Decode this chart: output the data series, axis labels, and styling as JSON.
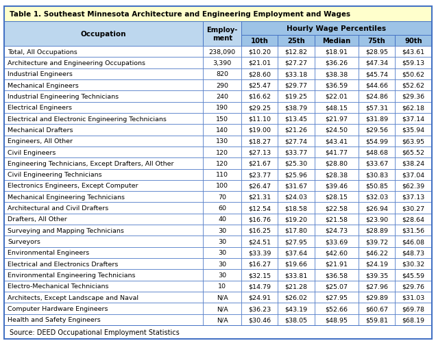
{
  "title": "Table 1. Southeast Minnesota Architecture and Engineering Employment and Wages",
  "source": "Source: DEED Occupational Employment Statistics",
  "rows": [
    [
      "Total, All Occupations",
      "238,090",
      "$10.20",
      "$12.82",
      "$18.91",
      "$28.95",
      "$43.61"
    ],
    [
      "Architecture and Engineering Occupations",
      "3,390",
      "$21.01",
      "$27.27",
      "$36.26",
      "$47.34",
      "$59.13"
    ],
    [
      "Industrial Engineers",
      "820",
      "$28.60",
      "$33.18",
      "$38.38",
      "$45.74",
      "$50.62"
    ],
    [
      "Mechanical Engineers",
      "290",
      "$25.47",
      "$29.77",
      "$36.59",
      "$44.66",
      "$52.62"
    ],
    [
      "Industrial Engineering Technicians",
      "240",
      "$16.62",
      "$19.25",
      "$22.01",
      "$24.86",
      "$29.36"
    ],
    [
      "Electrical Engineers",
      "190",
      "$29.25",
      "$38.79",
      "$48.15",
      "$57.31",
      "$62.18"
    ],
    [
      "Electrical and Electronic Engineering Technicians",
      "150",
      "$11.10",
      "$13.45",
      "$21.97",
      "$31.89",
      "$37.14"
    ],
    [
      "Mechanical Drafters",
      "140",
      "$19.00",
      "$21.26",
      "$24.50",
      "$29.56",
      "$35.94"
    ],
    [
      "Engineers, All Other",
      "130",
      "$18.27",
      "$27.74",
      "$43.41",
      "$54.99",
      "$63.95"
    ],
    [
      "Civil Engineers",
      "120",
      "$27.13",
      "$33.77",
      "$41.77",
      "$48.68",
      "$65.52"
    ],
    [
      "Engineering Technicians, Except Drafters, All Other",
      "120",
      "$21.67",
      "$25.30",
      "$28.80",
      "$33.67",
      "$38.24"
    ],
    [
      "Civil Engineering Technicians",
      "110",
      "$23.77",
      "$25.96",
      "$28.38",
      "$30.83",
      "$37.04"
    ],
    [
      "Electronics Engineers, Except Computer",
      "100",
      "$26.47",
      "$31.67",
      "$39.46",
      "$50.85",
      "$62.39"
    ],
    [
      "Mechanical Engineering Technicians",
      "70",
      "$21.31",
      "$24.03",
      "$28.15",
      "$32.03",
      "$37.13"
    ],
    [
      "Architectural and Civil Drafters",
      "60",
      "$12.54",
      "$18.58",
      "$22.58",
      "$26.94",
      "$30.27"
    ],
    [
      "Drafters, All Other",
      "40",
      "$16.76",
      "$19.20",
      "$21.58",
      "$23.90",
      "$28.64"
    ],
    [
      "Surveying and Mapping Technicians",
      "30",
      "$16.25",
      "$17.80",
      "$24.73",
      "$28.89",
      "$31.56"
    ],
    [
      "Surveyors",
      "30",
      "$24.51",
      "$27.95",
      "$33.69",
      "$39.72",
      "$46.08"
    ],
    [
      "Environmental Engineers",
      "30",
      "$33.39",
      "$37.64",
      "$42.60",
      "$46.22",
      "$48.73"
    ],
    [
      "Electrical and Electronics Drafters",
      "30",
      "$16.27",
      "$19.66",
      "$21.91",
      "$24.19",
      "$30.32"
    ],
    [
      "Environmental Engineering Technicians",
      "30",
      "$32.15",
      "$33.81",
      "$36.58",
      "$39.35",
      "$45.59"
    ],
    [
      "Electro-Mechanical Technicians",
      "10",
      "$14.79",
      "$21.28",
      "$25.07",
      "$27.96",
      "$29.76"
    ],
    [
      "Architects, Except Landscape and Naval",
      "N/A",
      "$24.91",
      "$26.02",
      "$27.95",
      "$29.89",
      "$31.03"
    ],
    [
      "Computer Hardware Engineers",
      "N/A",
      "$36.23",
      "$43.19",
      "$52.66",
      "$60.67",
      "$69.78"
    ],
    [
      "Health and Safety Engineers",
      "N/A",
      "$30.46",
      "$38.05",
      "$48.95",
      "$59.81",
      "$68.19"
    ]
  ],
  "title_bg": "#FFFFCC",
  "header_bg": "#BDD7EE",
  "perc_header_bg": "#9DC3E6",
  "perc_label_bg": "#9DC3E6",
  "data_bg": "#FFFFFF",
  "border_color": "#4472C4",
  "fig_width": 6.36,
  "fig_height": 5.02,
  "dpi": 100
}
